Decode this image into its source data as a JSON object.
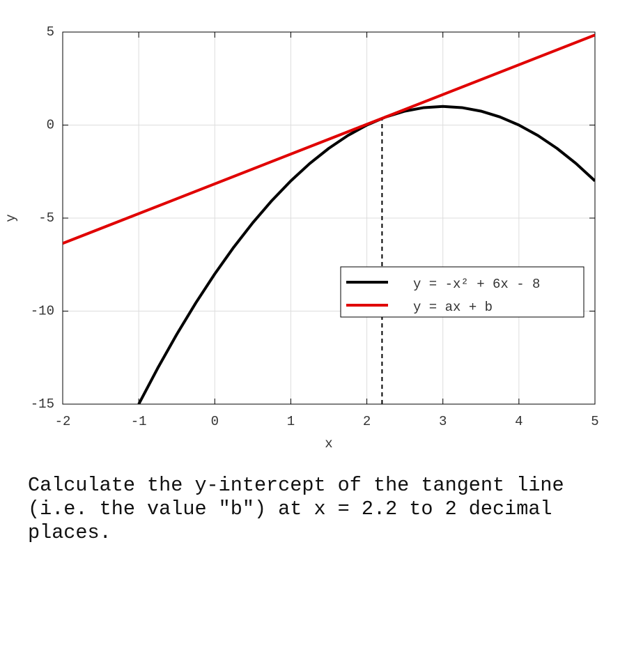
{
  "chart_data": {
    "type": "line",
    "xlabel": "x",
    "ylabel": "y",
    "xlim": [
      -2,
      5
    ],
    "ylim": [
      -15,
      5
    ],
    "xticks": [
      -2,
      -1,
      0,
      1,
      2,
      3,
      4,
      5
    ],
    "yticks": [
      -15,
      -10,
      -5,
      0,
      5
    ],
    "grid": true,
    "legend": "center right",
    "series": [
      {
        "name": "y = -x² + 6x - 8",
        "color": "#000000",
        "x": [
          -1,
          -0.75,
          -0.5,
          -0.25,
          0,
          0.25,
          0.5,
          0.75,
          1,
          1.25,
          1.5,
          1.75,
          2,
          2.25,
          2.5,
          2.75,
          3,
          3.25,
          3.5,
          3.75,
          4,
          4.25,
          4.5,
          4.75,
          5
        ],
        "values": [
          -15,
          -13.0625,
          -11.25,
          -9.5625,
          -8,
          -6.5625,
          -5.25,
          -4.0625,
          -3,
          -2.0625,
          -1.25,
          -0.5625,
          0,
          0.4375,
          0.75,
          0.9375,
          1,
          0.9375,
          0.75,
          0.4375,
          0,
          -0.5625,
          -1.25,
          -2.0625,
          -3
        ]
      },
      {
        "name": "y = ax + b",
        "color": "#e00000",
        "x": [
          -2,
          5
        ],
        "values": [
          -6.36,
          4.84
        ]
      }
    ],
    "vline": {
      "x": 2.2,
      "y": [
        -15,
        0.36
      ],
      "style": "dashed"
    }
  },
  "question": "Calculate the y-intercept of the tangent line (i.e. the value \"b\") at x = 2.2 to 2 decimal places."
}
